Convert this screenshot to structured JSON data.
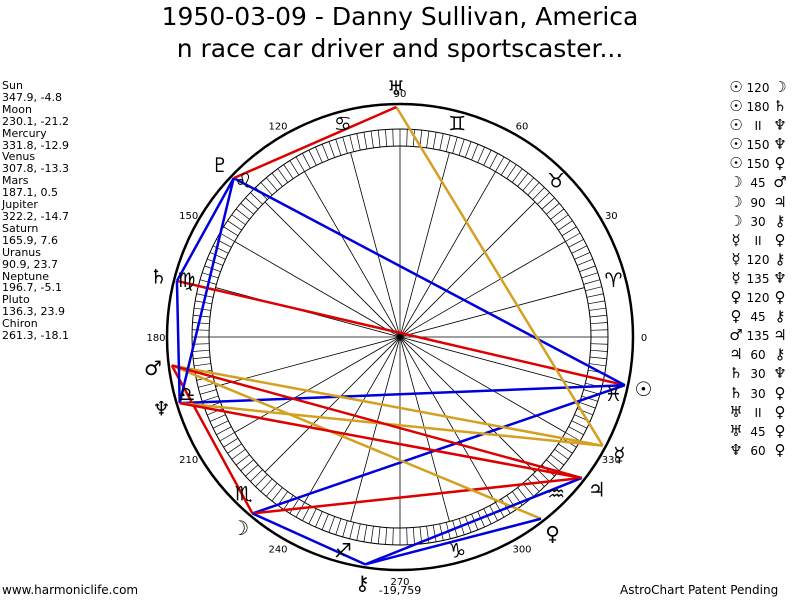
{
  "title_line1": "1950-03-09 - Danny Sullivan, America",
  "title_line2": "n race car driver and sportscaster...",
  "planets": [
    {
      "name": "Sun",
      "coords": "347.9, -4.8",
      "lon": 347.9,
      "glyph": "☉",
      "glyph_lon": 347.9
    },
    {
      "name": "Moon",
      "coords": "230.1, -21.2",
      "lon": 230.1,
      "glyph": "☽",
      "glyph_lon": 230.1
    },
    {
      "name": "Mercury",
      "coords": "331.8, -12.9",
      "lon": 331.8,
      "glyph": "☿",
      "glyph_lon": 331.8
    },
    {
      "name": "Venus",
      "coords": "307.8, -13.3",
      "lon": 307.8,
      "glyph": "♀",
      "glyph_lon": 307.8
    },
    {
      "name": "Mars",
      "coords": "187.1, 0.5",
      "lon": 187.1,
      "glyph": "♂",
      "glyph_lon": 187.1
    },
    {
      "name": "Jupiter",
      "coords": "322.2, -14.7",
      "lon": 322.2,
      "glyph": "♃",
      "glyph_lon": 322.2
    },
    {
      "name": "Saturn",
      "coords": "165.9, 7.6",
      "lon": 165.9,
      "glyph": "♄",
      "glyph_lon": 165.9
    },
    {
      "name": "Uranus",
      "coords": "90.9, 23.7",
      "lon": 90.9,
      "glyph": "♅",
      "glyph_lon": 90.9
    },
    {
      "name": "Neptune",
      "coords": "196.7, -5.1",
      "lon": 196.7,
      "glyph": "♆",
      "glyph_lon": 196.7
    },
    {
      "name": "Pluto",
      "coords": "136.3, 23.9",
      "lon": 136.3,
      "glyph": "♇",
      "glyph_lon": 136.3
    },
    {
      "name": "Chiron",
      "coords": "261.3, -18.1",
      "lon": 261.3,
      "glyph": "⚷",
      "glyph_lon": 261.3
    }
  ],
  "aspects": [
    {
      "p1": "☉",
      "asp": "120",
      "p2": "☽"
    },
    {
      "p1": "☉",
      "asp": "180",
      "p2": "♄"
    },
    {
      "p1": "☉",
      "asp": "II",
      "p2": "♆"
    },
    {
      "p1": "☉",
      "asp": "150",
      "p2": "♆"
    },
    {
      "p1": "☉",
      "asp": "150",
      "p2": "♀"
    },
    {
      "p1": "☽",
      "asp": "45",
      "p2": "♂"
    },
    {
      "p1": "☽",
      "asp": "90",
      "p2": "♃"
    },
    {
      "p1": "☽",
      "asp": "30",
      "p2": "⚷"
    },
    {
      "p1": "☿",
      "asp": "II",
      "p2": "♀"
    },
    {
      "p1": "☿",
      "asp": "120",
      "p2": "⚷"
    },
    {
      "p1": "☿",
      "asp": "135",
      "p2": "♆"
    },
    {
      "p1": "♀",
      "asp": "120",
      "p2": "♀"
    },
    {
      "p1": "♀",
      "asp": "45",
      "p2": "⚷"
    },
    {
      "p1": "♂",
      "asp": "135",
      "p2": "♃"
    },
    {
      "p1": "♃",
      "asp": "60",
      "p2": "⚷"
    },
    {
      "p1": "♄",
      "asp": "30",
      "p2": "♆"
    },
    {
      "p1": "♄",
      "asp": "30",
      "p2": "♀"
    },
    {
      "p1": "♅",
      "asp": "II",
      "p2": "♀"
    },
    {
      "p1": "♅",
      "asp": "45",
      "p2": "♀"
    },
    {
      "p1": "♆",
      "asp": "60",
      "p2": "♀"
    }
  ],
  "degree_labels": [
    {
      "deg": 0,
      "text": "0"
    },
    {
      "deg": 30,
      "text": "30"
    },
    {
      "deg": 60,
      "text": "60"
    },
    {
      "deg": 90,
      "text": "90"
    },
    {
      "deg": 120,
      "text": "120"
    },
    {
      "deg": 150,
      "text": "150"
    },
    {
      "deg": 180,
      "text": "180"
    },
    {
      "deg": 210,
      "text": "210"
    },
    {
      "deg": 240,
      "text": "240"
    },
    {
      "deg": 270,
      "text": "270"
    },
    {
      "deg": 300,
      "text": "300"
    },
    {
      "deg": 330,
      "text": "330"
    }
  ],
  "sign_glyphs": [
    {
      "glyph": "♈",
      "deg": 15
    },
    {
      "glyph": "♉",
      "deg": 45
    },
    {
      "glyph": "♊",
      "deg": 75
    },
    {
      "glyph": "♋",
      "deg": 105
    },
    {
      "glyph": "♌",
      "deg": 135
    },
    {
      "glyph": "♍",
      "deg": 165
    },
    {
      "glyph": "♎",
      "deg": 195
    },
    {
      "glyph": "♏",
      "deg": 225
    },
    {
      "glyph": "♐",
      "deg": 255
    },
    {
      "glyph": "♑",
      "deg": 285
    },
    {
      "glyph": "♒",
      "deg": 315
    },
    {
      "glyph": "♓",
      "deg": 345
    }
  ],
  "aspect_lines": [
    {
      "a": 347.9,
      "b": 230.1,
      "color": "#0000dd"
    },
    {
      "a": 347.9,
      "b": 165.9,
      "color": "#dd0000"
    },
    {
      "a": 347.9,
      "b": 196.7,
      "color": "#0000dd"
    },
    {
      "a": 347.9,
      "b": 136.3,
      "color": "#0000dd"
    },
    {
      "a": 230.1,
      "b": 187.1,
      "color": "#dd0000"
    },
    {
      "a": 230.1,
      "b": 322.2,
      "color": "#dd0000"
    },
    {
      "a": 230.1,
      "b": 261.3,
      "color": "#0000dd"
    },
    {
      "a": 331.8,
      "b": 90.9,
      "color": "#d4a020"
    },
    {
      "a": 331.8,
      "b": 196.7,
      "color": "#d4a020"
    },
    {
      "a": 331.8,
      "b": 187.1,
      "color": "#d4a020"
    },
    {
      "a": 307.8,
      "b": 187.1,
      "color": "#d4a020"
    },
    {
      "a": 307.8,
      "b": 261.3,
      "color": "#0000dd"
    },
    {
      "a": 322.2,
      "b": 187.1,
      "color": "#dd0000"
    },
    {
      "a": 322.2,
      "b": 261.3,
      "color": "#0000dd"
    },
    {
      "a": 165.9,
      "b": 196.7,
      "color": "#0000dd"
    },
    {
      "a": 165.9,
      "b": 136.3,
      "color": "#0000dd"
    },
    {
      "a": 90.9,
      "b": 136.3,
      "color": "#dd0000"
    },
    {
      "a": 196.7,
      "b": 136.3,
      "color": "#0000dd"
    },
    {
      "a": 196.7,
      "b": 322.2,
      "color": "#dd0000"
    }
  ],
  "chart_bottom_label": "-19,759",
  "footer_left": "www.harmoniclife.com",
  "footer_right": "AstroChart Patent Pending"
}
